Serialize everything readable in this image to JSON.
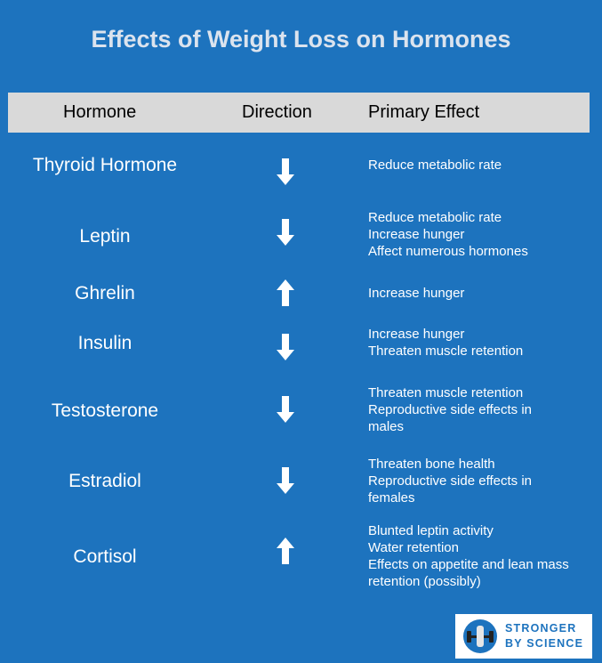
{
  "title": "Effects of Weight Loss on Hormones",
  "header": {
    "hormone": "Hormone",
    "direction": "Direction",
    "effect": "Primary Effect"
  },
  "rows": [
    {
      "name": "Thyroid Hormone",
      "direction": "down",
      "effects": [
        "Reduce metabolic rate"
      ]
    },
    {
      "name": "Leptin",
      "direction": "down",
      "effects": [
        "Reduce metabolic rate",
        "Increase hunger",
        "Affect numerous hormones"
      ]
    },
    {
      "name": "Ghrelin",
      "direction": "up",
      "effects": [
        "Increase hunger"
      ]
    },
    {
      "name": "Insulin",
      "direction": "down",
      "effects": [
        "Increase hunger",
        "Threaten muscle retention"
      ]
    },
    {
      "name": "Testosterone",
      "direction": "down",
      "effects": [
        "Threaten muscle retention",
        "Reproductive side effects in",
        "males"
      ]
    },
    {
      "name": "Estradiol",
      "direction": "down",
      "effects": [
        "Threaten bone health",
        "Reproductive side effects in",
        "females"
      ]
    },
    {
      "name": "Cortisol",
      "direction": "up",
      "effects": [
        "Blunted leptin activity",
        "Water retention",
        "Effects on appetite and lean mass",
        "retention (possibly)"
      ]
    }
  ],
  "logo": {
    "line1": "STRONGER",
    "line2": "BY SCIENCE"
  },
  "colors": {
    "background": "#1d73be",
    "header_bg": "#d9d9d9",
    "title": "#dbe3ee",
    "arrow": "#ffffff"
  }
}
